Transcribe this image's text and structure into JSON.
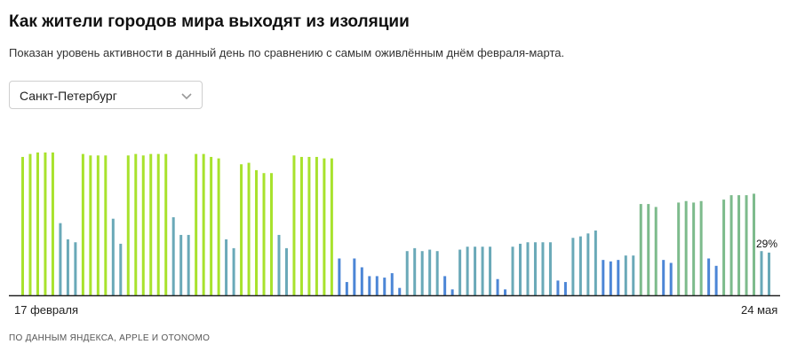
{
  "header": {
    "title": "Как жители городов мира выходят из изоляции",
    "subtitle": "Показан уровень активности в данный день по сравнению с самым оживлённым днём февраля-марта."
  },
  "city_select": {
    "value": "Санкт-Петербург",
    "icon": "chevron-down-icon"
  },
  "footer": {
    "source": "ПО ДАННЫМ ЯНДЕКСА, APPLE И OTONOMO"
  },
  "colors": {
    "high": "#a8e22d",
    "mid": "#7dbb8c",
    "mid2": "#6aa9b8",
    "low": "#4c86d6",
    "baseline": "#222222"
  },
  "chart_data": {
    "type": "bar",
    "x_start_label": "17 февраля",
    "x_end_label": "24 мая",
    "last_value_label": "29%",
    "ylim": [
      0,
      100
    ],
    "values": [
      94,
      96,
      97,
      97,
      97,
      49,
      38,
      36,
      96,
      95,
      95,
      95,
      52,
      35,
      95,
      96,
      95,
      96,
      96,
      96,
      53,
      41,
      41,
      96,
      96,
      94,
      93,
      38,
      32,
      89,
      90,
      85,
      83,
      83,
      41,
      32,
      95,
      94,
      94,
      94,
      93,
      93,
      25,
      9,
      25,
      19,
      13,
      13,
      12,
      15,
      5,
      30,
      32,
      30,
      31,
      30,
      13,
      4,
      31,
      33,
      33,
      33,
      33,
      11,
      4,
      33,
      35,
      36,
      36,
      36,
      36,
      10,
      9,
      39,
      40,
      42,
      44,
      24,
      23,
      24,
      27,
      27,
      62,
      62,
      60,
      24,
      22,
      63,
      64,
      63,
      64,
      25,
      20,
      65,
      68,
      68,
      68,
      69,
      30,
      29
    ]
  }
}
